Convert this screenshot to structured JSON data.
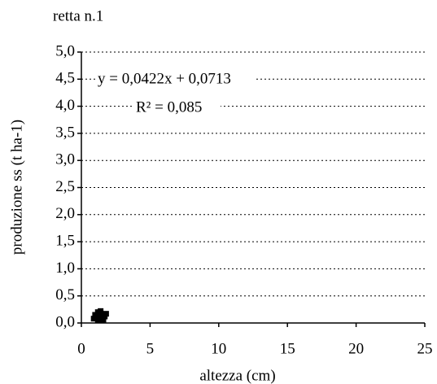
{
  "chart_data": {
    "type": "scatter",
    "title": "retta n.1",
    "x_label": "altezza (cm)",
    "y_label": "produzione ss (t ha-1)",
    "annotations": [
      "y = 0,0422x + 0,0713",
      "R² = 0,085"
    ],
    "color": "#000000",
    "x": [
      0.9,
      1.0,
      1.1,
      1.2,
      1.3,
      1.4,
      1.5,
      1.6,
      1.7,
      1.8,
      1.2,
      1.4
    ],
    "values": [
      0.08,
      0.15,
      0.12,
      0.2,
      0.1,
      0.18,
      0.14,
      0.06,
      0.12,
      0.17,
      0.05,
      0.22
    ],
    "xlim": [
      0,
      25
    ],
    "xticks": [
      0,
      5,
      10,
      15,
      20,
      25
    ],
    "ylim": [
      0,
      5
    ],
    "yticks": [
      {
        "value": 0,
        "label": "0,0"
      },
      {
        "value": 0.5,
        "label": "0,5"
      },
      {
        "value": 1,
        "label": "1,0"
      },
      {
        "value": 1.5,
        "label": "1,5"
      },
      {
        "value": 2,
        "label": "2,0"
      },
      {
        "value": 2.5,
        "label": "2,5"
      },
      {
        "value": 3,
        "label": "3,0"
      },
      {
        "value": 3.5,
        "label": "3,5"
      },
      {
        "value": 4,
        "label": "4,0"
      },
      {
        "value": 4.5,
        "label": "4,5"
      },
      {
        "value": 5,
        "label": "5,0"
      }
    ],
    "grid": true
  }
}
